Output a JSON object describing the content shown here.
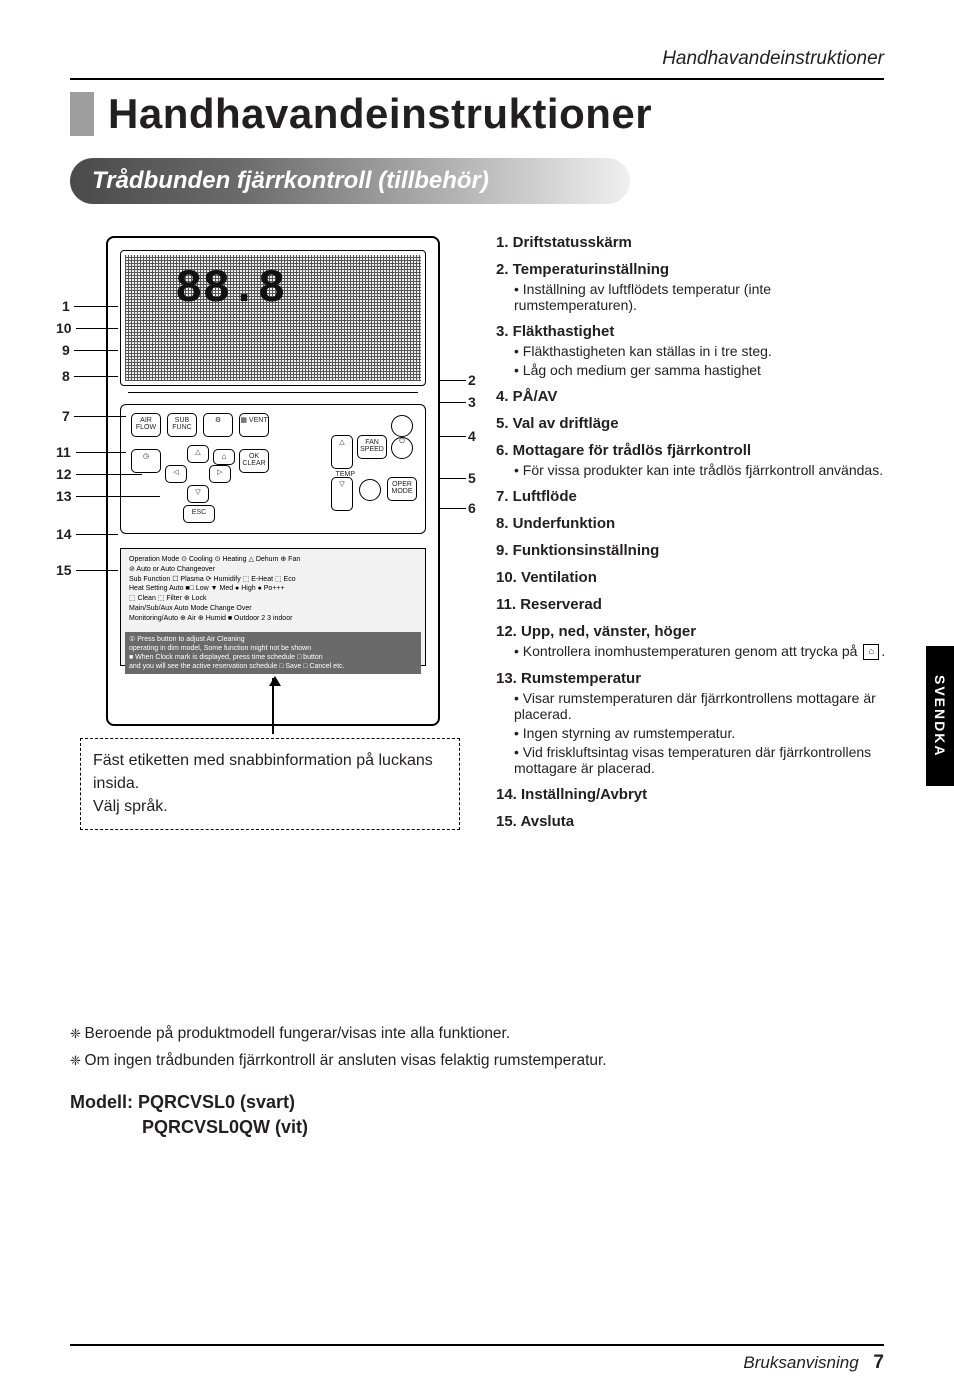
{
  "header": {
    "running": "Handhavandeinstruktioner"
  },
  "title": "Handhavandeinstruktioner",
  "subtitle": "Trådbunden fjärrkontroll (tillbehör)",
  "sideTab": "SVENDKA",
  "remote": {
    "big": "88.8",
    "btns": {
      "airflow": "AIR\nFLOW",
      "sub": "SUB\nFUNC",
      "gear": "⚙",
      "vent": "▦\nVENT",
      "up": "△",
      "down": "▽",
      "left": "◁",
      "right": "▷",
      "home": "⌂",
      "ok": "OK\nCLEAR",
      "esc": "ESC",
      "clock": "◷",
      "fan": "FAN\nSPEED",
      "power": "⏻",
      "temp": "TEMP",
      "oper": "OPER\nMODE",
      "dotL": "",
      "dotR": ""
    },
    "infoLines": [
      "Operation Mode   ⊙ Cooling  ⊙ Heating  △ Dehum  ⊕ Fan",
      "                 ⊘ Auto or Auto Changeover",
      "Sub Function     ☐ Plasma  ⟳ Humidify  ⬚ E-Heat  ⬚ Eco",
      "Heat Setting Auto ■□ Low  ▼ Med  ● High  ● Po+++",
      "                 ⬚ Clean ⬚ Filter ⊕ Lock",
      "Main/Sub/Aux      Auto Mode Change Over",
      "Monitoring/Auto   ⊕ Air ⊕ Humid ■ Outdoor  2 3 indoor",
      "",
      "① Press button to adjust Air Cleaning",
      "   operating in dim model, Some function might not be shown",
      "■ When Clock mark is displayed, press time schedule □ button",
      "   and you will see the active reservation schedule □ Save □ Cancel etc."
    ]
  },
  "leftNums": [
    "1",
    "10",
    "9",
    "8",
    "7",
    "11",
    "12",
    "13",
    "14",
    "15"
  ],
  "rightNums": [
    "2",
    "3",
    "4",
    "5",
    "6"
  ],
  "dashedBox": [
    "Fäst etiketten med snabbinformation på luckans insida.",
    "Välj språk."
  ],
  "rcol": [
    {
      "n": "1",
      "h": "Driftstatusskärm"
    },
    {
      "n": "2",
      "h": "Temperaturinställning",
      "subs": [
        "Inställning av luftflödets temperatur (inte rumstemperaturen)."
      ]
    },
    {
      "n": "3",
      "h": "Fläkthastighet",
      "subs": [
        "Fläkthastigheten kan ställas in i tre steg.",
        "Låg och medium ger samma hastighet"
      ]
    },
    {
      "n": "4",
      "h": "PÅ/AV"
    },
    {
      "n": "5",
      "h": "Val av driftläge"
    },
    {
      "n": "6",
      "h": "Mottagare för trådlös fjärrkontroll",
      "subs": [
        "För vissa produkter kan inte trådlös fjärrkontroll användas."
      ]
    },
    {
      "n": "7",
      "h": "Luftflöde"
    },
    {
      "n": "8",
      "h": "Underfunktion"
    },
    {
      "n": "9",
      "h": "Funktionsinställning"
    },
    {
      "n": "10",
      "h": "Ventilation"
    },
    {
      "n": "11",
      "h": "Reserverad"
    },
    {
      "n": "12",
      "h": "Upp, ned, vänster, höger",
      "subs": [
        "Kontrollera inomhustemperaturen genom att trycka på <ICON>."
      ]
    },
    {
      "n": "13",
      "h": "Rumstemperatur",
      "subs": [
        "Visar rumstemperaturen där fjärrkontrollens mottagare är placerad.",
        "Ingen styrning av rumstemperatur.",
        "Vid friskluftsintag visas temperaturen där fjärrkontrollens mottagare är placerad."
      ]
    },
    {
      "n": "14",
      "h": "Inställning/Avbryt"
    },
    {
      "n": "15",
      "h": "Avsluta"
    }
  ],
  "notes": [
    "Beroende på produktmodell fungerar/visas inte alla funktioner.",
    "Om ingen trådbunden fjärrkontroll är ansluten visas felaktig rumstemperatur."
  ],
  "model": {
    "l1": "Modell: PQRCVSL0 (svart)",
    "l2": "PQRCVSL0QW (vit)"
  },
  "footer": {
    "text": "Bruksanvisning",
    "page": "7"
  }
}
